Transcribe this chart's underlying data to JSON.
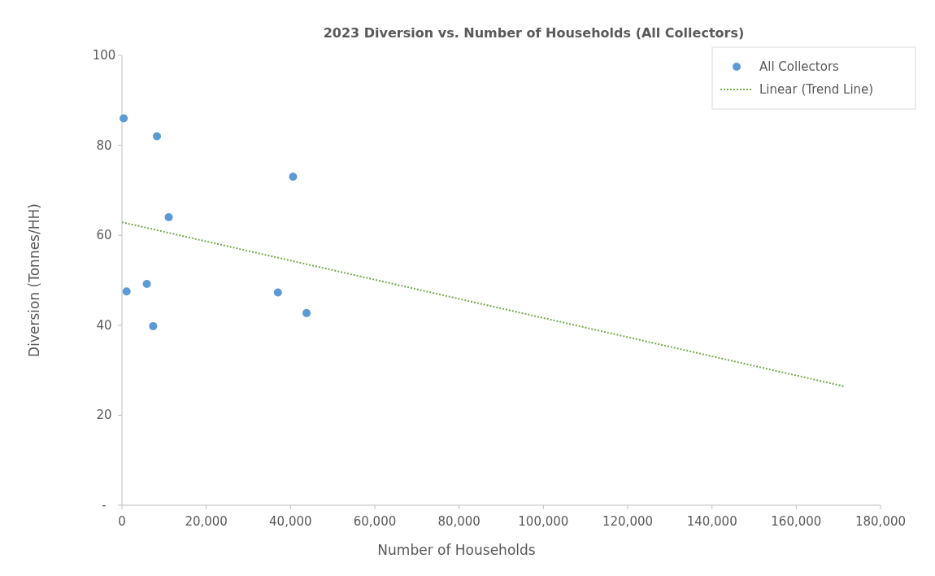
{
  "chart_data": {
    "type": "scatter",
    "title": "2023 Diversion vs. Number of Households (All Collectors)",
    "xlabel": "Number of Households",
    "ylabel": "Diversion (Tonnes/HH)",
    "xlim": [
      0,
      180000
    ],
    "xticks": [
      {
        "value": 0,
        "label": "0"
      },
      {
        "value": 20000,
        "label": "20,000"
      },
      {
        "value": 40000,
        "label": "40,000"
      },
      {
        "value": 60000,
        "label": "60,000"
      },
      {
        "value": 80000,
        "label": "80,000"
      },
      {
        "value": 100000,
        "label": "100,000"
      },
      {
        "value": 120000,
        "label": "120,000"
      },
      {
        "value": 140000,
        "label": "140,000"
      },
      {
        "value": 160000,
        "label": "160,000"
      },
      {
        "value": 180000,
        "label": "180,000"
      }
    ],
    "ylim": [
      0,
      100
    ],
    "yticks": [
      {
        "value": 0,
        "label": "-"
      },
      20,
      40,
      60,
      80,
      100
    ],
    "grid": false,
    "legend": "top right",
    "marker": "circle",
    "series": [
      {
        "name": "All Collectors",
        "color": "#5b9bd5",
        "x": [
          400,
          8300,
          40600,
          11100,
          1100,
          5900,
          37000,
          7400,
          43800
        ],
        "values": [
          86,
          82,
          73,
          64,
          47.5,
          49.2,
          47.3,
          39.8,
          42.7
        ]
      },
      {
        "name": "Linear (Trend Line)",
        "type": "line",
        "color": "#70ad47",
        "line_style": "dotted",
        "marker": "none",
        "x": [
          0,
          171500
        ],
        "values": [
          62.9,
          26.4
        ]
      }
    ]
  }
}
